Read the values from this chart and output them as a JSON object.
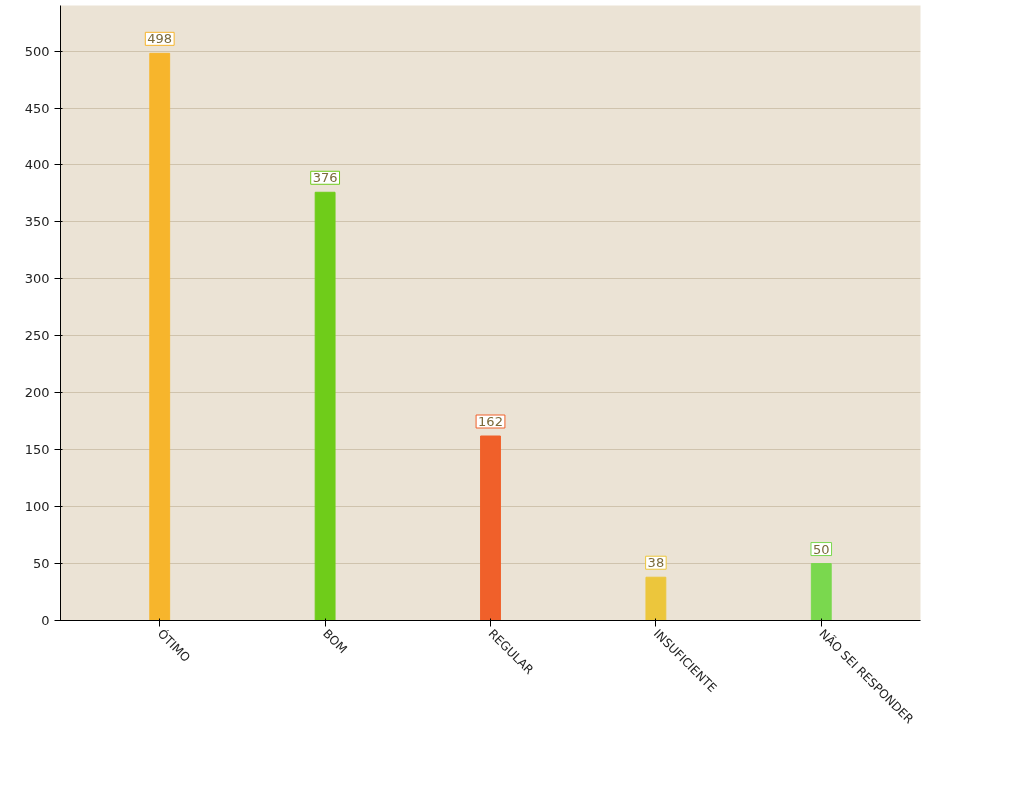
{
  "chart_data": {
    "type": "bar",
    "categories": [
      "ÓTIMO",
      "BOM",
      "REGULAR",
      "INSUFICIENTE",
      "NÃO SEI RESPONDER"
    ],
    "values": [
      498,
      376,
      162,
      38,
      50
    ],
    "colors": [
      "#f7b52c",
      "#6fcc1a",
      "#f0602a",
      "#ecc63c",
      "#7ad84e"
    ],
    "ylim": [
      0,
      540
    ],
    "yticks": [
      0,
      50,
      100,
      150,
      200,
      250,
      300,
      350,
      400,
      450,
      500
    ],
    "grid": "y",
    "data_labels": true
  }
}
